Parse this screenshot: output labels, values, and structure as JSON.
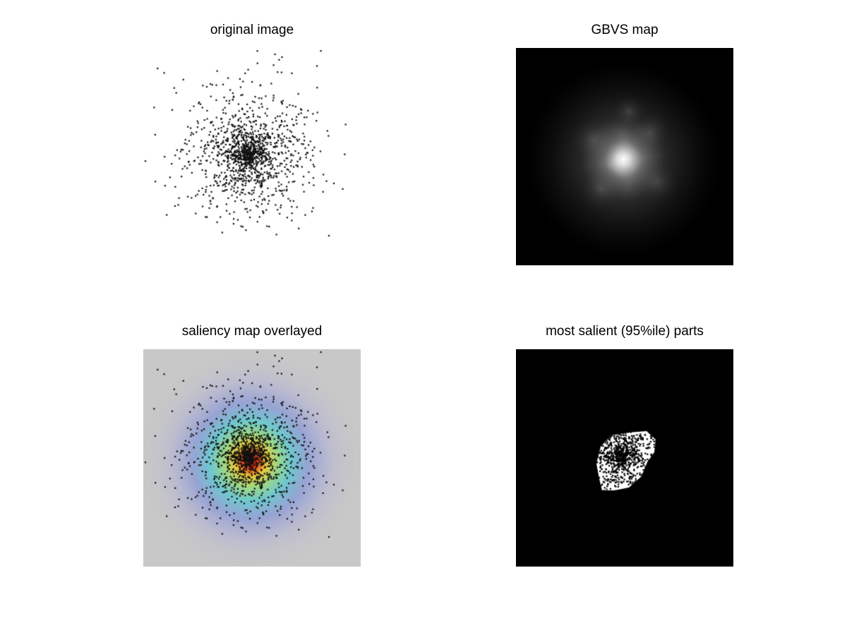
{
  "figure": {
    "panels": [
      {
        "id": "original",
        "title": "original image"
      },
      {
        "id": "gbvs",
        "title": "GBVS map"
      },
      {
        "id": "overlay",
        "title": "saliency map overlayed"
      },
      {
        "id": "salient",
        "title": "most salient (95%ile) parts"
      }
    ]
  },
  "colors": {
    "background": "#ffffff",
    "dot": "#111111",
    "overlay_bg": "#c8c8c8",
    "map_bg": "#000000"
  }
}
